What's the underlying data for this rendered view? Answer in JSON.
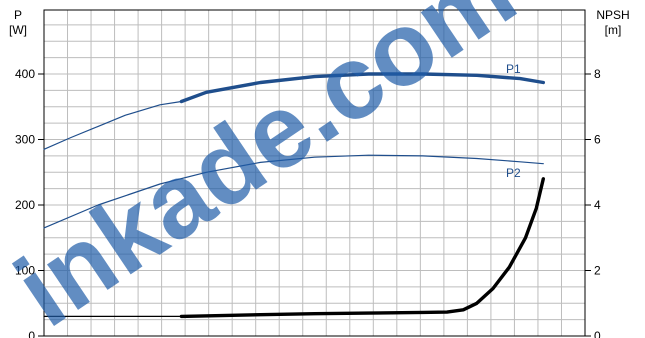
{
  "chart_data": {
    "type": "line",
    "title": "",
    "left_axis": {
      "label_line1": "P",
      "label_line2": "[W]",
      "ylim": [
        0,
        400
      ],
      "ticks": [
        "0",
        "100",
        "200",
        "300",
        "400"
      ]
    },
    "right_axis": {
      "label_line1": "NPSH",
      "label_line2": "[m]",
      "ylim": [
        0,
        8
      ],
      "ticks": [
        "0",
        "2",
        "4",
        "6",
        "8"
      ]
    },
    "x_range": [
      0,
      1
    ],
    "grid": true,
    "series": [
      {
        "name": "P1",
        "axis": "left",
        "color": "#1f4e8c",
        "thin_x": [
          0.0,
          0.05,
          0.1,
          0.15,
          0.2145,
          0.254
        ],
        "thin_y": [
          285,
          303,
          320,
          337,
          353,
          358
        ],
        "thick_x": [
          0.254,
          0.3,
          0.4,
          0.5,
          0.6,
          0.7,
          0.8,
          0.88,
          0.923
        ],
        "thick_y": [
          358,
          372,
          387,
          396,
          400,
          400,
          398,
          393,
          387
        ]
      },
      {
        "name": "P2",
        "axis": "left",
        "color": "#1f4e8c",
        "thin_x": [
          0.0,
          0.1,
          0.2145,
          0.3,
          0.4,
          0.5,
          0.6,
          0.7,
          0.8,
          0.88,
          0.923
        ],
        "thin_y": [
          165,
          200,
          232,
          250,
          265,
          273,
          276,
          275,
          271,
          266,
          263
        ]
      },
      {
        "name": "NPSH",
        "axis": "right",
        "color": "#000000",
        "thin_x": [
          0.0,
          0.254
        ],
        "thin_y": [
          0.6,
          0.6
        ],
        "thick_x": [
          0.254,
          0.4,
          0.5,
          0.6,
          0.7,
          0.745,
          0.775,
          0.8,
          0.83,
          0.86,
          0.89,
          0.91,
          0.923
        ],
        "thick_y": [
          0.6,
          0.65,
          0.68,
          0.7,
          0.72,
          0.73,
          0.8,
          1.0,
          1.45,
          2.1,
          3.0,
          3.9,
          4.8
        ]
      }
    ]
  },
  "watermark": "inkade.com"
}
